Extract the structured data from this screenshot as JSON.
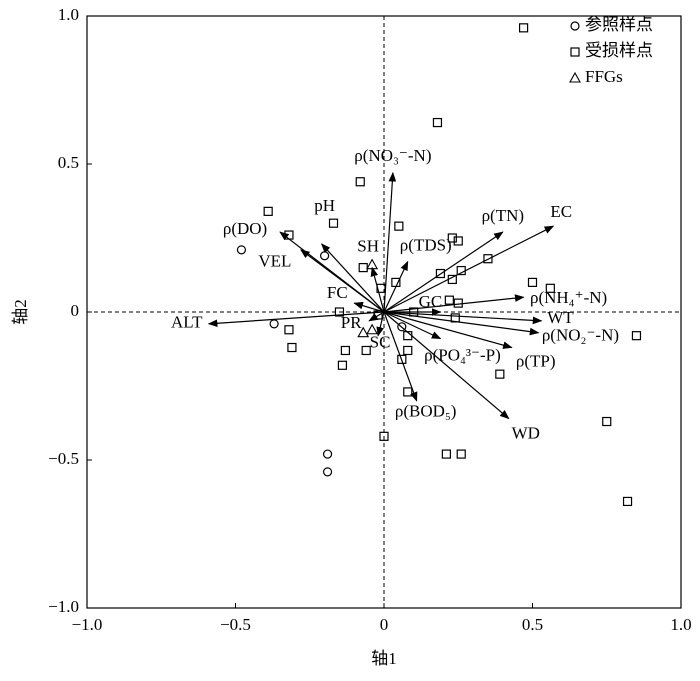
{
  "chart_data": {
    "type": "biplot",
    "x_label": "轴1",
    "y_label": "轴2",
    "xlim": [
      -1,
      1
    ],
    "ylim": [
      -1,
      1
    ],
    "xticks": [
      {
        "value": -1,
        "label": "−1.0"
      },
      {
        "value": -0.5,
        "label": "−0.5"
      },
      0,
      0.5,
      {
        "value": 1,
        "label": "1.0"
      }
    ],
    "yticks": [
      {
        "value": -1,
        "label": "−1.0"
      },
      {
        "value": -0.5,
        "label": "−0.5"
      },
      0,
      0.5,
      {
        "value": 1,
        "label": "1.0"
      }
    ],
    "legend": "upper right",
    "series": [
      {
        "name": "参照样点",
        "marker": "circle",
        "color": "#000000",
        "x": [
          -0.48,
          -0.2,
          -0.37,
          -0.19,
          -0.19,
          0.06
        ],
        "values": [
          0.21,
          0.19,
          -0.04,
          -0.48,
          -0.54,
          -0.05
        ]
      },
      {
        "name": "受损样点",
        "marker": "square",
        "color": "#000000",
        "x": [
          0.47,
          0.18,
          -0.08,
          -0.39,
          -0.32,
          -0.17,
          0.05,
          0.23,
          0.25,
          -0.07,
          0.35,
          0.26,
          0.19,
          0.23,
          0.04,
          -0.01,
          0.5,
          0.56,
          0.22,
          0.25,
          0.1,
          0.24,
          -0.15,
          -0.02,
          -0.32,
          -0.31,
          -0.13,
          -0.14,
          -0.06,
          0.08,
          0.08,
          0.06,
          0.08,
          0.39,
          0.85,
          0.75,
          0.82,
          0.0,
          0.21,
          0.26
        ],
        "values": [
          0.96,
          0.64,
          0.44,
          0.34,
          0.26,
          0.3,
          0.29,
          0.25,
          0.24,
          0.15,
          0.18,
          0.14,
          0.13,
          0.11,
          0.1,
          0.08,
          0.1,
          0.08,
          0.04,
          0.03,
          0.0,
          -0.02,
          0.0,
          -0.01,
          -0.06,
          -0.12,
          -0.13,
          -0.18,
          -0.13,
          -0.08,
          -0.13,
          -0.16,
          -0.27,
          -0.21,
          -0.08,
          -0.37,
          -0.64,
          -0.42,
          -0.48,
          -0.48
        ]
      },
      {
        "name": "FFGs",
        "marker": "triangle",
        "color": "#000000",
        "x": [
          -0.04,
          -0.07,
          -0.04
        ],
        "values": [
          0.16,
          -0.07,
          -0.06
        ]
      }
    ],
    "vectors": [
      {
        "name": "ρ(NO₃⁻-N)",
        "x": 0.03,
        "y": 0.47
      },
      {
        "name": "ρ(TN)",
        "x": 0.4,
        "y": 0.27
      },
      {
        "name": "EC",
        "x": 0.57,
        "y": 0.29
      },
      {
        "name": "ρ(TDS)",
        "x": 0.08,
        "y": 0.17
      },
      {
        "name": "pH",
        "x": -0.21,
        "y": 0.23
      },
      {
        "name": "ρ(DO)",
        "x": -0.35,
        "y": 0.27
      },
      {
        "name": "VEL",
        "x": -0.28,
        "y": 0.21
      },
      {
        "name": "SH",
        "x": -0.04,
        "y": 0.15
      },
      {
        "name": "FC",
        "x": -0.1,
        "y": 0.03
      },
      {
        "name": "ALT",
        "x": -0.59,
        "y": -0.04
      },
      {
        "name": "PR",
        "x": -0.05,
        "y": -0.03
      },
      {
        "name": "SC",
        "x": -0.02,
        "y": -0.08
      },
      {
        "name": "GC",
        "x": 0.19,
        "y": 0.0
      },
      {
        "name": "ρ(NH₄⁺-N)",
        "x": 0.47,
        "y": 0.05
      },
      {
        "name": "WT",
        "x": 0.53,
        "y": -0.03
      },
      {
        "name": "ρ(NO₂⁻-N)",
        "x": 0.52,
        "y": -0.07
      },
      {
        "name": "ρ(TP)",
        "x": 0.43,
        "y": -0.12
      },
      {
        "name": "ρ(PO₄³⁻-P)",
        "x": 0.19,
        "y": -0.09
      },
      {
        "name": "WD",
        "x": 0.42,
        "y": -0.36
      },
      {
        "name": "ρ(BOD₅)",
        "x": 0.11,
        "y": -0.3
      }
    ]
  }
}
